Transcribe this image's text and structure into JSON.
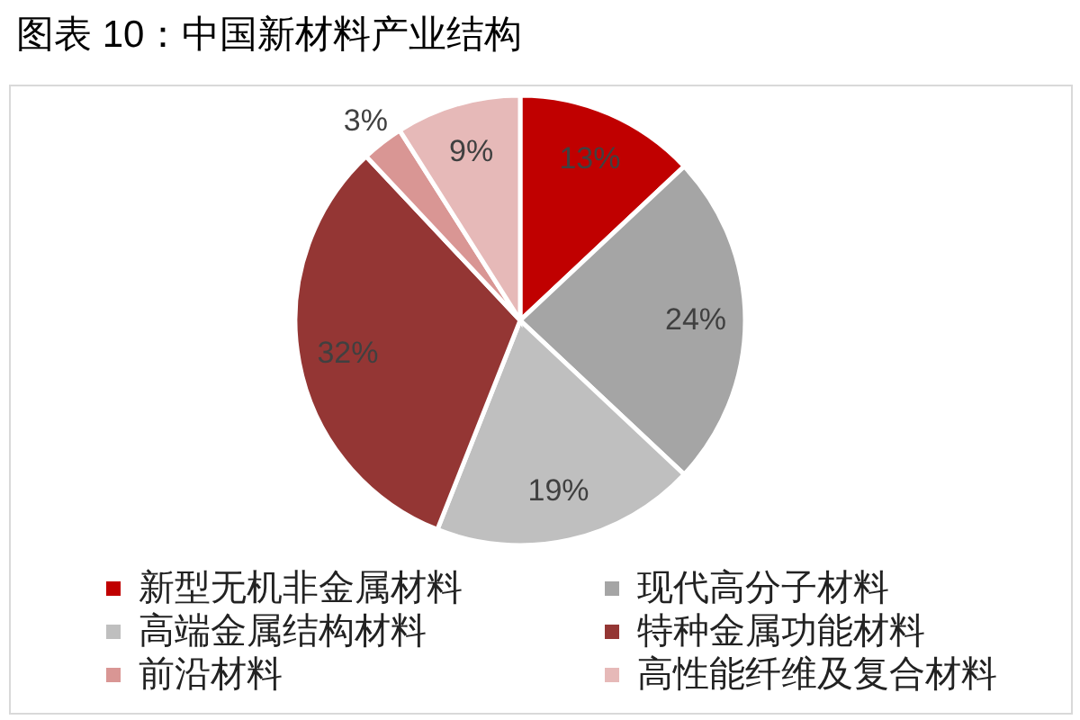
{
  "chart_data": {
    "type": "pie",
    "title": "图表 10：中国新材料产业结构",
    "categories": [
      "新型无机非金属材料",
      "现代高分子材料",
      "高端金属结构材料",
      "特种金属功能材料",
      "前沿材料",
      "高性能纤维及复合材料"
    ],
    "values": [
      13,
      24,
      19,
      32,
      3,
      9
    ],
    "colors": [
      "#c00000",
      "#a5a5a5",
      "#bfbfbf",
      "#943634",
      "#d99694",
      "#e6b9b8"
    ],
    "value_labels": [
      "13%",
      "24%",
      "19%",
      "32%",
      "3%",
      "9%"
    ],
    "legend": "bottom"
  }
}
